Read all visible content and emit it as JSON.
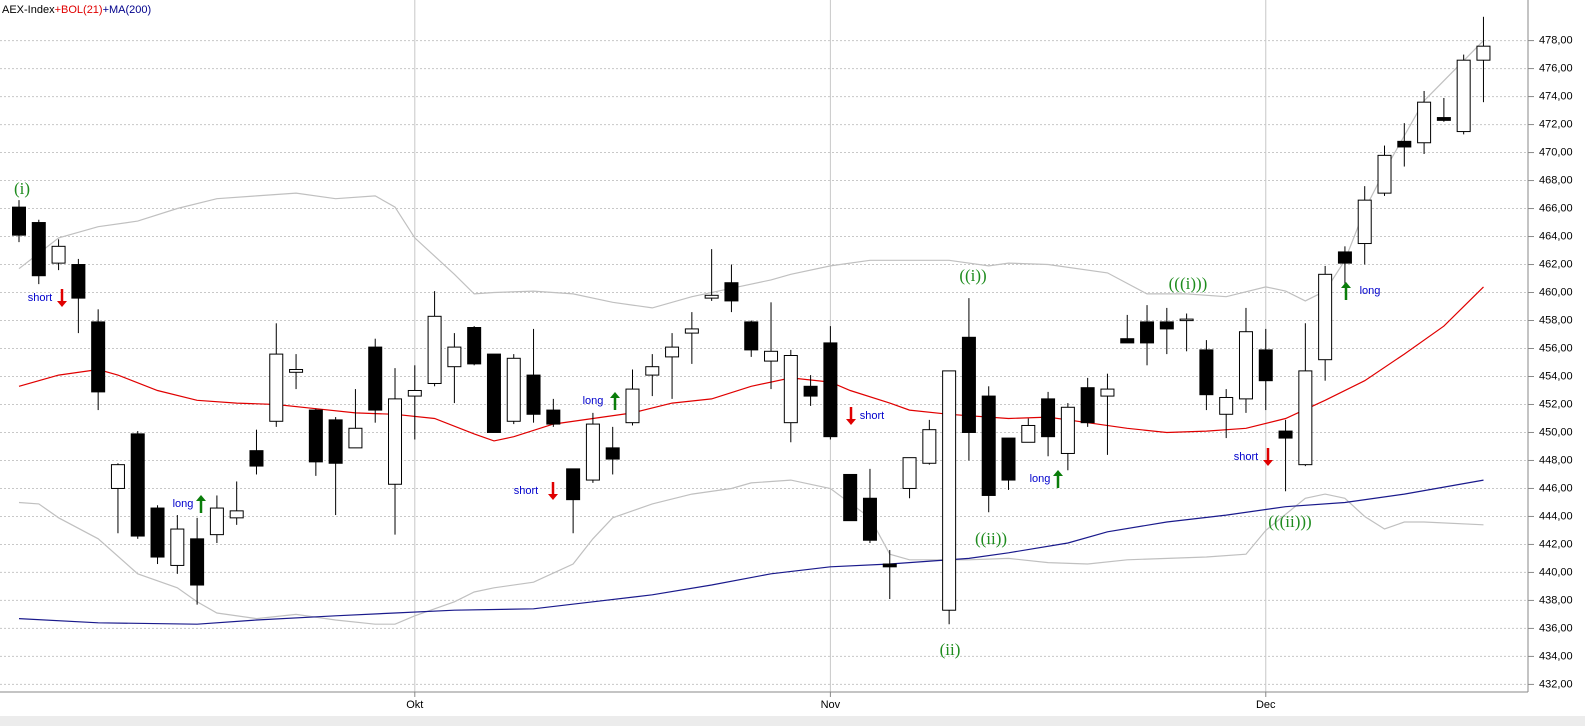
{
  "chart_data": {
    "type": "candlestick",
    "title": "AEX-Index",
    "categories": [
      null,
      null,
      null,
      null,
      null,
      null,
      null,
      null,
      null,
      null,
      null,
      null,
      null,
      null,
      null,
      null,
      null,
      null,
      null,
      null,
      "Okt",
      null,
      null,
      null,
      null,
      null,
      null,
      null,
      null,
      null,
      null,
      null,
      null,
      null,
      null,
      null,
      null,
      null,
      null,
      null,
      null,
      "Nov",
      null,
      null,
      null,
      null,
      null,
      null,
      null,
      null,
      null,
      null,
      null,
      null,
      null,
      null,
      null,
      null,
      null,
      null,
      null,
      null,
      null,
      "Dec",
      null,
      null,
      null,
      null,
      null,
      null,
      null,
      null,
      null,
      null,
      null
    ],
    "open": [
      466.1,
      465,
      462.1,
      462,
      457.9,
      446,
      449.9,
      444.6,
      440.5,
      442.4,
      442.7,
      443.9,
      448.7,
      450.8,
      454.3,
      451.6,
      450.9,
      448.9,
      456.1,
      446.3,
      452.6,
      453.5,
      454.7,
      457.5,
      455.6,
      450.8,
      454.1,
      451.6,
      447.4,
      446.6,
      448.9,
      450.7,
      454.1,
      455.4,
      457.1,
      459.6,
      460.7,
      457.9,
      455.1,
      450.7,
      453.3,
      456.4,
      447,
      445.3,
      440.6,
      446,
      447.8,
      437.3,
      456.8,
      452.6,
      449.6,
      449.3,
      452.4,
      448.5,
      453.2,
      452.6,
      456.7,
      457.9,
      457.9,
      458,
      455.9,
      451.3,
      452.4,
      455.9,
      450.1,
      447.7,
      455.2,
      462.9,
      463.5,
      467.1,
      470.8,
      470.7,
      472.5,
      471.5,
      476.6
    ],
    "high": [
      466.6,
      465.2,
      463.8,
      462.4,
      458.8,
      447.8,
      450.1,
      444.8,
      444.1,
      443.9,
      445.5,
      446.5,
      450.2,
      457.8,
      455.6,
      451.7,
      451.1,
      453.1,
      456.7,
      454.6,
      454.8,
      460.1,
      457.1,
      457.6,
      455.6,
      455.6,
      457.4,
      452.4,
      447.4,
      451.4,
      450.4,
      454.5,
      455.6,
      457.1,
      458.6,
      463.1,
      462,
      458,
      459.3,
      455.9,
      454.1,
      457.6,
      447,
      447.4,
      441.6,
      448.2,
      450.9,
      454.4,
      459.6,
      453.3,
      449.6,
      451,
      452.9,
      452.1,
      453.9,
      454.2,
      458.4,
      459.1,
      458.9,
      458.5,
      456.6,
      453.1,
      458.9,
      457.4,
      450.9,
      457.8,
      461.9,
      463.3,
      467.6,
      470.5,
      472.1,
      474.4,
      473.9,
      477,
      479.7
    ],
    "low": [
      463.6,
      460.6,
      461.6,
      457.1,
      451.6,
      442.8,
      442.4,
      440.6,
      439.9,
      437.7,
      442.1,
      443.4,
      447,
      450.4,
      453.1,
      446.9,
      444.1,
      448.9,
      450.7,
      442.7,
      449.5,
      453.3,
      452.1,
      454.8,
      450,
      450.6,
      450.7,
      450.4,
      442.8,
      446.4,
      447,
      450.5,
      452.6,
      452.4,
      454.9,
      459.4,
      458.6,
      455.4,
      453.1,
      449.3,
      451.9,
      449.5,
      443.7,
      442.1,
      438.1,
      445.3,
      447.7,
      436.3,
      448,
      444.3,
      445.9,
      449.3,
      448.3,
      447.3,
      450.4,
      448.4,
      456.4,
      454.8,
      455.6,
      455.8,
      451.6,
      449.6,
      451.4,
      451.6,
      445.8,
      447.6,
      453.7,
      460.6,
      462,
      466.9,
      469,
      469.9,
      472.2,
      471.3,
      473.6
    ],
    "close": [
      464.1,
      461.2,
      463.3,
      459.6,
      452.9,
      447.7,
      442.6,
      441.1,
      443.1,
      439.1,
      444.6,
      444.4,
      447.6,
      455.6,
      454.5,
      447.9,
      447.8,
      450.3,
      451.6,
      452.4,
      453,
      458.3,
      456.1,
      454.9,
      450,
      455.3,
      451.3,
      450.6,
      445.2,
      450.6,
      448.1,
      453.1,
      454.7,
      456.1,
      457.4,
      459.8,
      459.4,
      455.9,
      455.8,
      455.5,
      452.6,
      449.7,
      443.7,
      442.3,
      440.4,
      448.2,
      450.2,
      454.4,
      450,
      445.5,
      446.6,
      450.5,
      449.7,
      451.8,
      450.7,
      453.1,
      456.4,
      456.4,
      457.4,
      458.1,
      452.7,
      452.5,
      457.2,
      453.7,
      449.6,
      454.4,
      461.3,
      462.1,
      466.6,
      469.8,
      470.4,
      473.6,
      472.3,
      476.6,
      477.6
    ],
    "indicators": [
      {
        "name": "+BOL(21)",
        "color": "#e00000",
        "lines": [
          {
            "color": "#c0c0c0",
            "x": [
              0,
              2,
              4,
              6,
              8,
              10,
              12,
              14,
              16,
              18,
              19,
              20,
              22,
              23,
              24,
              26,
              28,
              30,
              32,
              34,
              36,
              38,
              39,
              41,
              43,
              45,
              47,
              49,
              50,
              52,
              55,
              57,
              59,
              61,
              63,
              64,
              65,
              66,
              67,
              68,
              69,
              71,
              74
            ],
            "values": [
              461.7,
              463.9,
              464.7,
              465.1,
              466,
              466.7,
              466.9,
              467.1,
              466.7,
              466.9,
              466.1,
              463.9,
              461.3,
              459.9,
              460,
              460.1,
              459.9,
              459.3,
              458.9,
              459.7,
              460.3,
              460.9,
              461.3,
              461.9,
              462.3,
              462.3,
              462.3,
              461.9,
              462.1,
              462,
              461.4,
              459.9,
              459.9,
              459.7,
              460.4,
              460.1,
              459.4,
              460.1,
              462.3,
              465.9,
              468.7,
              473.7,
              478
            ]
          },
          {
            "color": "#e00000",
            "x": [
              0,
              2,
              4,
              5,
              7,
              9,
              11,
              13,
              15,
              17,
              19,
              21,
              23,
              24,
              25,
              27,
              29,
              31,
              33,
              35,
              37,
              39,
              41,
              42,
              44,
              45,
              47,
              50,
              52,
              54,
              56,
              58,
              60,
              62,
              64,
              66,
              68,
              70,
              72,
              74
            ],
            "values": [
              453.3,
              454.1,
              454.5,
              454.1,
              453,
              452.3,
              452.1,
              452,
              451.7,
              451.4,
              451.3,
              451,
              449.9,
              449.4,
              449.7,
              450.6,
              451,
              451.4,
              452.1,
              452.4,
              453.3,
              453.9,
              453.6,
              453,
              452.1,
              451.6,
              451.3,
              451,
              451.1,
              450.7,
              450.3,
              450,
              450.1,
              450.3,
              451,
              452.3,
              453.7,
              455.6,
              457.6,
              460.4
            ]
          },
          {
            "color": "#c0c0c0",
            "x": [
              0,
              1,
              2,
              4,
              6,
              8,
              9,
              10,
              12,
              14,
              16,
              18,
              19,
              20,
              22,
              23,
              24,
              26,
              28,
              29,
              30,
              32,
              34,
              36,
              37,
              39,
              41,
              43,
              44,
              45,
              47,
              48,
              50,
              52,
              54,
              56,
              60,
              62,
              63,
              65,
              66,
              67,
              68,
              69,
              70,
              71,
              74
            ],
            "values": [
              445,
              444.9,
              443.9,
              442.4,
              439.9,
              438.9,
              437.9,
              437.1,
              436.7,
              437,
              436.6,
              436.3,
              436.3,
              436.9,
              437.9,
              438.6,
              438.9,
              439.3,
              440.6,
              442.4,
              443.9,
              444.9,
              445.6,
              446,
              446.4,
              446.6,
              446,
              443.9,
              441.3,
              440.9,
              440.9,
              440.9,
              441,
              440.7,
              440.6,
              440.9,
              441.1,
              441.3,
              443,
              445.3,
              445.6,
              445.3,
              444,
              443.1,
              443.6,
              443.6,
              443.4
            ]
          }
        ]
      },
      {
        "name": "+MA(200)",
        "color": "#00008b",
        "lines": [
          {
            "color": "#1a1a8c",
            "x": [
              0,
              4,
              9,
              12,
              16,
              19,
              22,
              26,
              29,
              32,
              35,
              38,
              41,
              44,
              48,
              50,
              53,
              55,
              58,
              61,
              64,
              67,
              70,
              74
            ],
            "values": [
              436.7,
              436.4,
              436.3,
              436.6,
              436.9,
              437.1,
              437.3,
              437.4,
              437.9,
              438.4,
              439.1,
              439.9,
              440.4,
              440.6,
              441,
              441.4,
              442.1,
              442.9,
              443.6,
              444.1,
              444.7,
              445,
              445.6,
              446.6
            ]
          }
        ]
      }
    ],
    "ylim": [
      431.6,
      480.9
    ],
    "yticks": [
      {
        "value": 432,
        "label": "432,00"
      },
      {
        "value": 434,
        "label": "434,00"
      },
      {
        "value": 436,
        "label": "436,00"
      },
      {
        "value": 438,
        "label": "438,00"
      },
      {
        "value": 440,
        "label": "440,00"
      },
      {
        "value": 442,
        "label": "442,00"
      },
      {
        "value": 444,
        "label": "444,00"
      },
      {
        "value": 446,
        "label": "446,00"
      },
      {
        "value": 448,
        "label": "448,00"
      },
      {
        "value": 450,
        "label": "450,00"
      },
      {
        "value": 452,
        "label": "452,00"
      },
      {
        "value": 454,
        "label": "454,00"
      },
      {
        "value": 456,
        "label": "456,00"
      },
      {
        "value": 458,
        "label": "458,00"
      },
      {
        "value": 460,
        "label": "460,00"
      },
      {
        "value": 462,
        "label": "462,00"
      },
      {
        "value": 464,
        "label": "464,00"
      },
      {
        "value": 466,
        "label": "466,00"
      },
      {
        "value": 468,
        "label": "468,00"
      },
      {
        "value": 470,
        "label": "470,00"
      },
      {
        "value": 472,
        "label": "472,00"
      },
      {
        "value": 474,
        "label": "474,00"
      },
      {
        "value": 476,
        "label": "476,00"
      },
      {
        "value": 478,
        "label": "478,00"
      }
    ],
    "grid": true,
    "wave_labels": [
      "(i)",
      "((i))",
      "((ii))",
      "(ii)",
      "(((i)))",
      "(((ii)))"
    ],
    "signals": [
      "short",
      "long",
      "long",
      "short",
      "short",
      "long",
      "short",
      "long"
    ]
  }
}
